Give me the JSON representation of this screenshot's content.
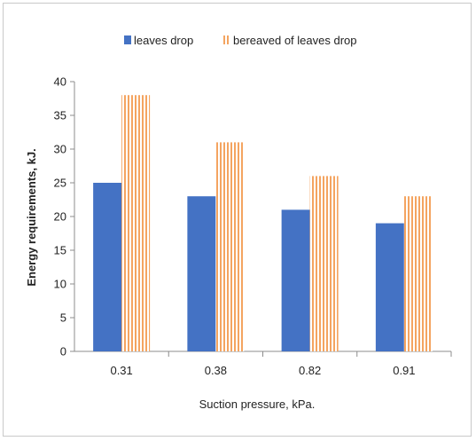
{
  "chart_data": {
    "type": "bar",
    "categories": [
      "0.31",
      "0.38",
      "0.82",
      "0.91"
    ],
    "series": [
      {
        "name": "leaves drop",
        "values": [
          25,
          23,
          21,
          19
        ],
        "color": "#4472c4",
        "pattern": "solid"
      },
      {
        "name": "bereaved of leaves drop",
        "values": [
          38,
          31,
          26,
          23
        ],
        "color": "#f4a460",
        "pattern": "vertical-stripes"
      }
    ],
    "title": "",
    "xlabel": "Suction pressure, kPa.",
    "ylabel": "Energy requirements, kJ.",
    "ylim": [
      0,
      40
    ],
    "yticks": [
      "0",
      "5",
      "10",
      "15",
      "20",
      "25",
      "30",
      "35",
      "40"
    ],
    "grid": false,
    "legend_position": "top"
  }
}
